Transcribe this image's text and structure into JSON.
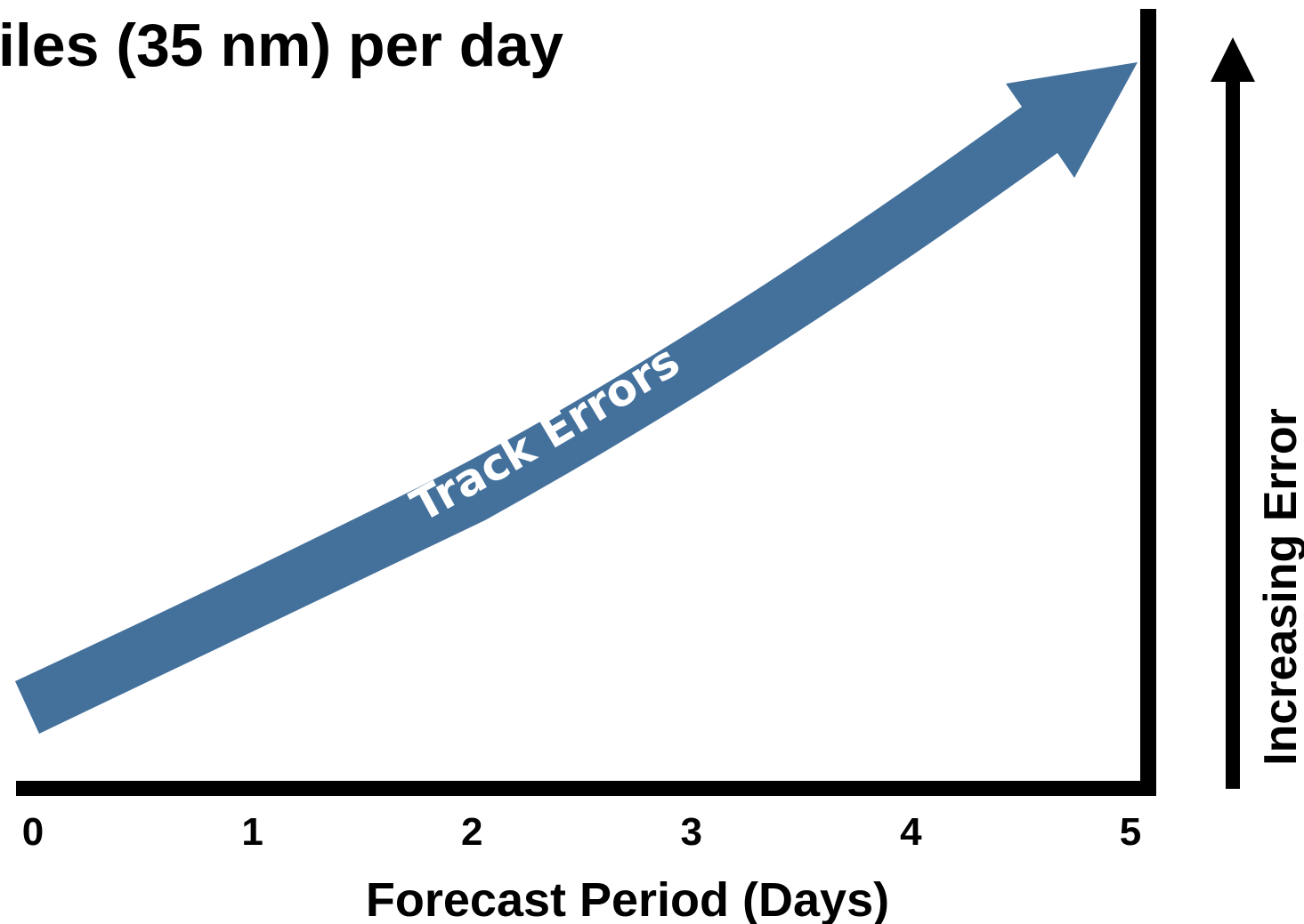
{
  "title": "iles (35 nm) per day",
  "x_axis": {
    "label": "Forecast Period (Days)",
    "ticks": [
      "0",
      "1",
      "2",
      "3",
      "4",
      "5"
    ]
  },
  "y_axis": {
    "label": "Increasing Error"
  },
  "trend_arrow": {
    "label": "Track Errors"
  },
  "colors": {
    "arrow_fill": "#44719c",
    "arrow_text": "#ffffff",
    "axis": "#000000"
  }
}
